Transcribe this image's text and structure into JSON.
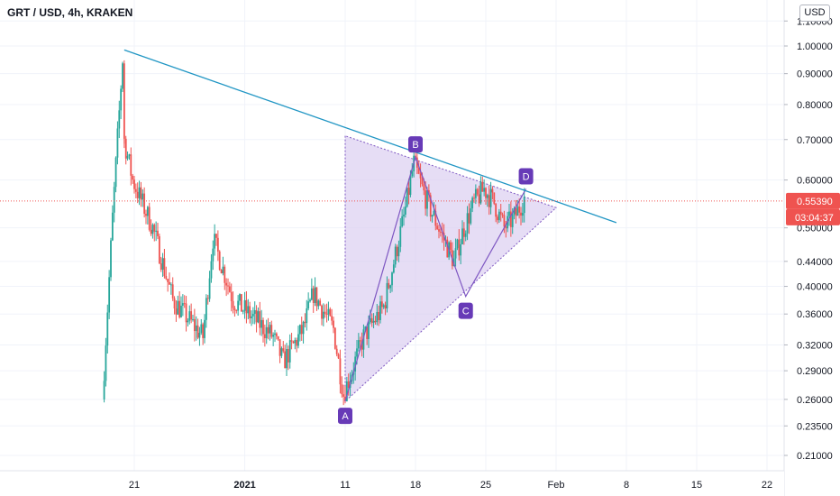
{
  "header": {
    "title": "GRT / USD, 4h, KRAKEN",
    "currency_button": "USD"
  },
  "price_scale": {
    "ticks": [
      "1.10000",
      "1.00000",
      "0.90000",
      "0.80000",
      "0.70000",
      "0.60000",
      "0.50000",
      "0.44000",
      "0.40000",
      "0.36000",
      "0.32000",
      "0.29000",
      "0.26000",
      "0.23500",
      "0.21000"
    ],
    "log_scale": true
  },
  "time_scale": {
    "ticks": [
      "21",
      "2021",
      "11",
      "18",
      "25",
      "Feb",
      "8",
      "15",
      "22"
    ]
  },
  "last_price": {
    "value_label": "0.55390",
    "countdown_label": "03:04:37",
    "color": "#ef5350"
  },
  "pattern_labels": [
    "A",
    "B",
    "C",
    "D"
  ],
  "colors": {
    "up": "#26a69a",
    "down": "#ef5350",
    "trendline": "#2196c4",
    "triangle_fill": "#d9cbef",
    "triangle_edge": "#7e57c2",
    "label_bg": "#673ab7"
  },
  "chart_data": {
    "type": "candlestick",
    "title": "GRT / USD, 4h, KRAKEN",
    "x_axis": "time (Dec 2020 – Feb 2021)",
    "y_axis": "USD (log)",
    "ylim": [
      0.2,
      1.12
    ],
    "last_price": 0.5539,
    "swing_points": [
      {
        "label": "A",
        "date": "Jan 11 2021",
        "price": 0.258
      },
      {
        "label": "B",
        "date": "Jan 18 2021",
        "price": 0.655
      },
      {
        "label": "C",
        "date": "Jan 23 2021",
        "price": 0.385
      },
      {
        "label": "D",
        "date": "Jan 29 2021",
        "price": 0.58
      }
    ],
    "trendline": [
      {
        "date": "Dec 20 2020",
        "price": 0.985
      },
      {
        "date": "Feb 7 2021",
        "price": 0.51
      }
    ],
    "triangle": [
      {
        "date": "Jan 11 2021",
        "price": 0.71
      },
      {
        "date": "Jan 11 2021",
        "price": 0.258
      },
      {
        "date": "Feb 1 2021",
        "price": 0.54
      }
    ],
    "close_path": [
      {
        "date": "Dec 18 2020",
        "price": 0.26
      },
      {
        "date": "Dec 19 2020",
        "price": 0.52
      },
      {
        "date": "Dec 20 2020",
        "price": 0.95
      },
      {
        "date": "Dec 20 2020",
        "price": 0.72
      },
      {
        "date": "Dec 21 2020",
        "price": 0.6
      },
      {
        "date": "Dec 23 2020",
        "price": 0.5
      },
      {
        "date": "Dec 25 2020",
        "price": 0.38
      },
      {
        "date": "Dec 28 2020",
        "price": 0.33
      },
      {
        "date": "Dec 29 2020",
        "price": 0.48
      },
      {
        "date": "Dec 31 2020",
        "price": 0.38
      },
      {
        "date": "Jan 2 2021",
        "price": 0.355
      },
      {
        "date": "Jan 4 2021",
        "price": 0.33
      },
      {
        "date": "Jan 5 2021",
        "price": 0.3
      },
      {
        "date": "Jan 7 2021",
        "price": 0.34
      },
      {
        "date": "Jan 8 2021",
        "price": 0.39
      },
      {
        "date": "Jan 10 2021",
        "price": 0.34
      },
      {
        "date": "Jan 11 2021",
        "price": 0.265
      },
      {
        "date": "Jan 13 2021",
        "price": 0.33
      },
      {
        "date": "Jan 15 2021",
        "price": 0.37
      },
      {
        "date": "Jan 17 2021",
        "price": 0.52
      },
      {
        "date": "Jan 18 2021",
        "price": 0.64
      },
      {
        "date": "Jan 19 2021",
        "price": 0.57
      },
      {
        "date": "Jan 20 2021",
        "price": 0.52
      },
      {
        "date": "Jan 22 2021",
        "price": 0.44
      },
      {
        "date": "Jan 23 2021",
        "price": 0.5
      },
      {
        "date": "Jan 24 2021",
        "price": 0.55
      },
      {
        "date": "Jan 25 2021",
        "price": 0.58
      },
      {
        "date": "Jan 26 2021",
        "price": 0.55
      },
      {
        "date": "Jan 27 2021",
        "price": 0.5
      },
      {
        "date": "Jan 28 2021",
        "price": 0.52
      },
      {
        "date": "Jan 29 2021",
        "price": 0.56
      }
    ]
  }
}
